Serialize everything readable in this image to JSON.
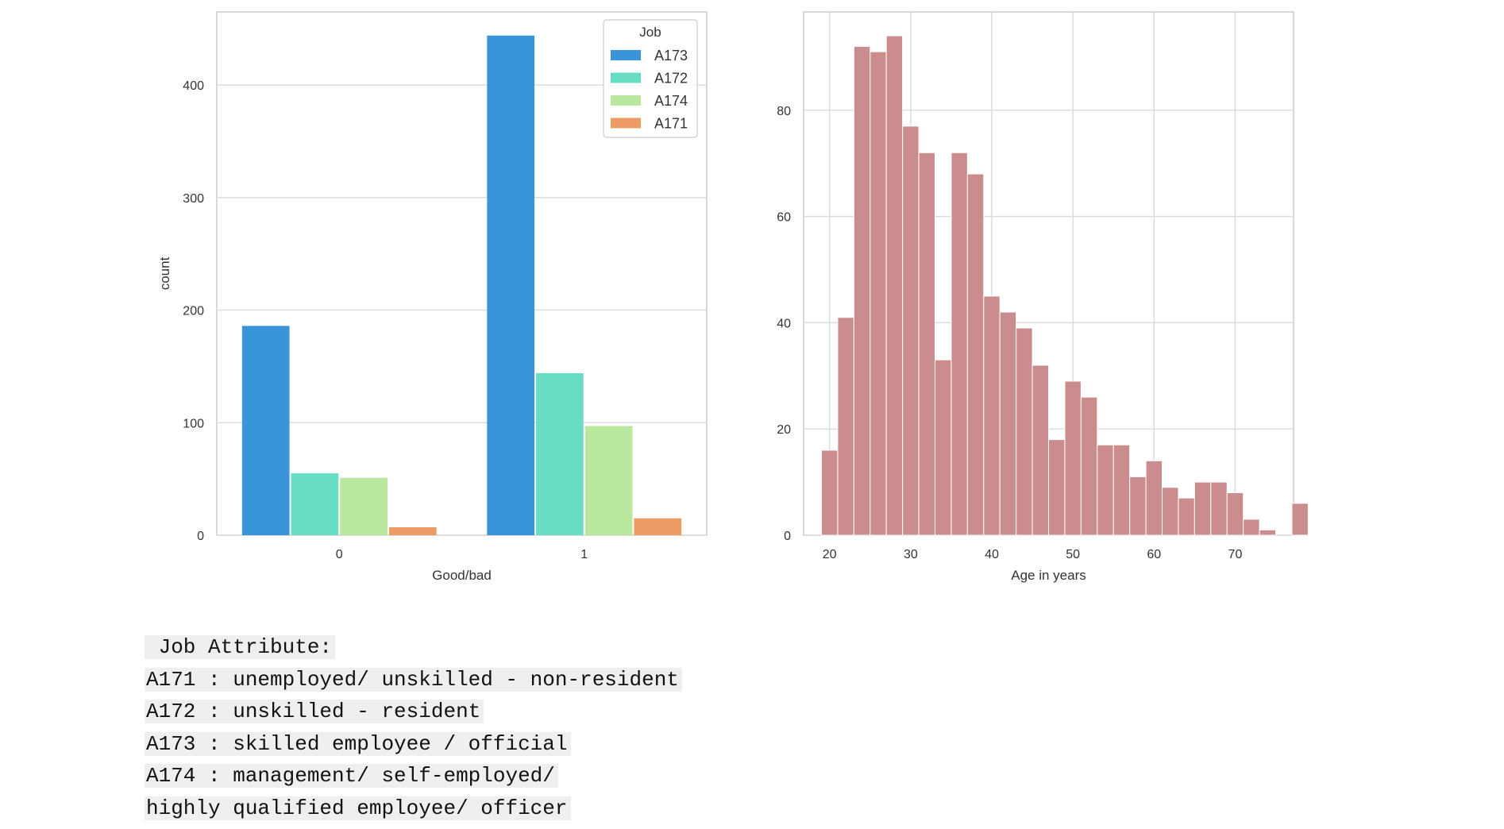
{
  "chart_data": [
    {
      "type": "bar",
      "xlabel": "Good/bad",
      "ylabel": "count",
      "categories": [
        "0",
        "1"
      ],
      "ylim": [
        0,
        465
      ],
      "yticks": [
        0,
        100,
        200,
        300,
        400
      ],
      "grid": true,
      "legend": {
        "title": "Job",
        "placement": "top-right"
      },
      "series": [
        {
          "name": "A173",
          "color": "#3a94d9",
          "values": [
            186,
            444
          ]
        },
        {
          "name": "A172",
          "color": "#67dec4",
          "values": [
            55,
            144
          ]
        },
        {
          "name": "A174",
          "color": "#b8e79d",
          "values": [
            51,
            97
          ]
        },
        {
          "name": "A171",
          "color": "#ec9b64",
          "values": [
            7,
            15
          ]
        }
      ]
    },
    {
      "type": "histogram",
      "xlabel": "Age in years",
      "ylabel": "",
      "color": "#cb8c8e",
      "xlim": [
        16.8,
        77.2
      ],
      "ylim": [
        0,
        98.5
      ],
      "xticks": [
        20,
        30,
        40,
        50,
        60,
        70
      ],
      "yticks": [
        0,
        20,
        40,
        60,
        80
      ],
      "grid": true,
      "bin_start": 19,
      "bin_width": 2,
      "counts": [
        16,
        41,
        92,
        91,
        94,
        77,
        72,
        33,
        72,
        68,
        45,
        42,
        39,
        32,
        18,
        29,
        26,
        17,
        17,
        11,
        14,
        9,
        7,
        10,
        10,
        8,
        3,
        1,
        0,
        6
      ]
    }
  ],
  "notes": {
    "lines": [
      " Job Attribute:",
      "A171 : unemployed/ unskilled - non-resident",
      "A172 : unskilled - resident",
      "A173 : skilled employee / official",
      "A174 : management/ self-employed/",
      "highly qualified employee/ officer"
    ]
  }
}
